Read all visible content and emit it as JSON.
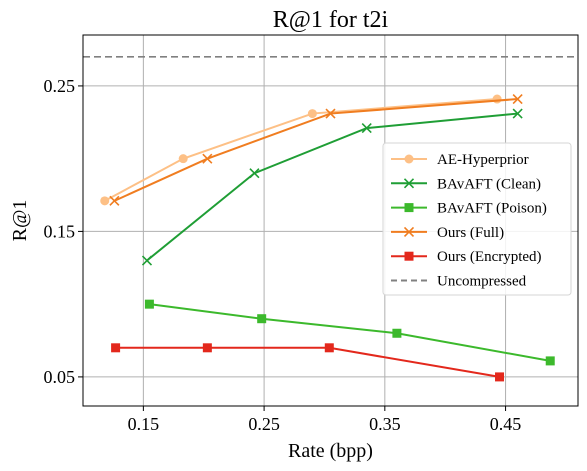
{
  "chart_data": {
    "type": "line",
    "title": "R@1 for t2i",
    "xlabel": "Rate (bpp)",
    "ylabel": "R@1",
    "xlim": [
      0.1,
      0.51
    ],
    "ylim": [
      0.03,
      0.285
    ],
    "xticks": [
      {
        "value": 0.15,
        "label": "0.15"
      },
      {
        "value": 0.25,
        "label": "0.25"
      },
      {
        "value": 0.35,
        "label": "0.35"
      },
      {
        "value": 0.45,
        "label": "0.45"
      }
    ],
    "yticks": [
      {
        "value": 0.05,
        "label": "0.05"
      },
      {
        "value": 0.15,
        "label": "0.15"
      },
      {
        "value": 0.25,
        "label": "0.25"
      }
    ],
    "grid": true,
    "legend_position": "right",
    "series": [
      {
        "name": "AE-Hyperprior",
        "color": "#fdc086",
        "marker": "circle",
        "x": [
          0.118,
          0.183,
          0.29,
          0.443
        ],
        "y": [
          0.171,
          0.2,
          0.231,
          0.241
        ]
      },
      {
        "name": "BAvAFT (Clean)",
        "color": "#1f9e35",
        "marker": "x",
        "x": [
          0.153,
          0.242,
          0.335,
          0.46
        ],
        "y": [
          0.13,
          0.19,
          0.221,
          0.231
        ]
      },
      {
        "name": "BAvAFT (Poison)",
        "color": "#3cb92c",
        "marker": "square",
        "x": [
          0.155,
          0.248,
          0.36,
          0.487
        ],
        "y": [
          0.1,
          0.09,
          0.08,
          0.061
        ]
      },
      {
        "name": "Ours (Full)",
        "color": "#f07d20",
        "marker": "x",
        "x": [
          0.126,
          0.203,
          0.305,
          0.46
        ],
        "y": [
          0.171,
          0.2,
          0.231,
          0.241
        ]
      },
      {
        "name": "Ours (Encrypted)",
        "color": "#e3281c",
        "marker": "square",
        "x": [
          0.127,
          0.203,
          0.304,
          0.445
        ],
        "y": [
          0.07,
          0.07,
          0.07,
          0.05
        ]
      }
    ],
    "reference_line": {
      "name": "Uncompressed",
      "y": 0.27,
      "color": "#808080",
      "style": "dashed"
    }
  }
}
